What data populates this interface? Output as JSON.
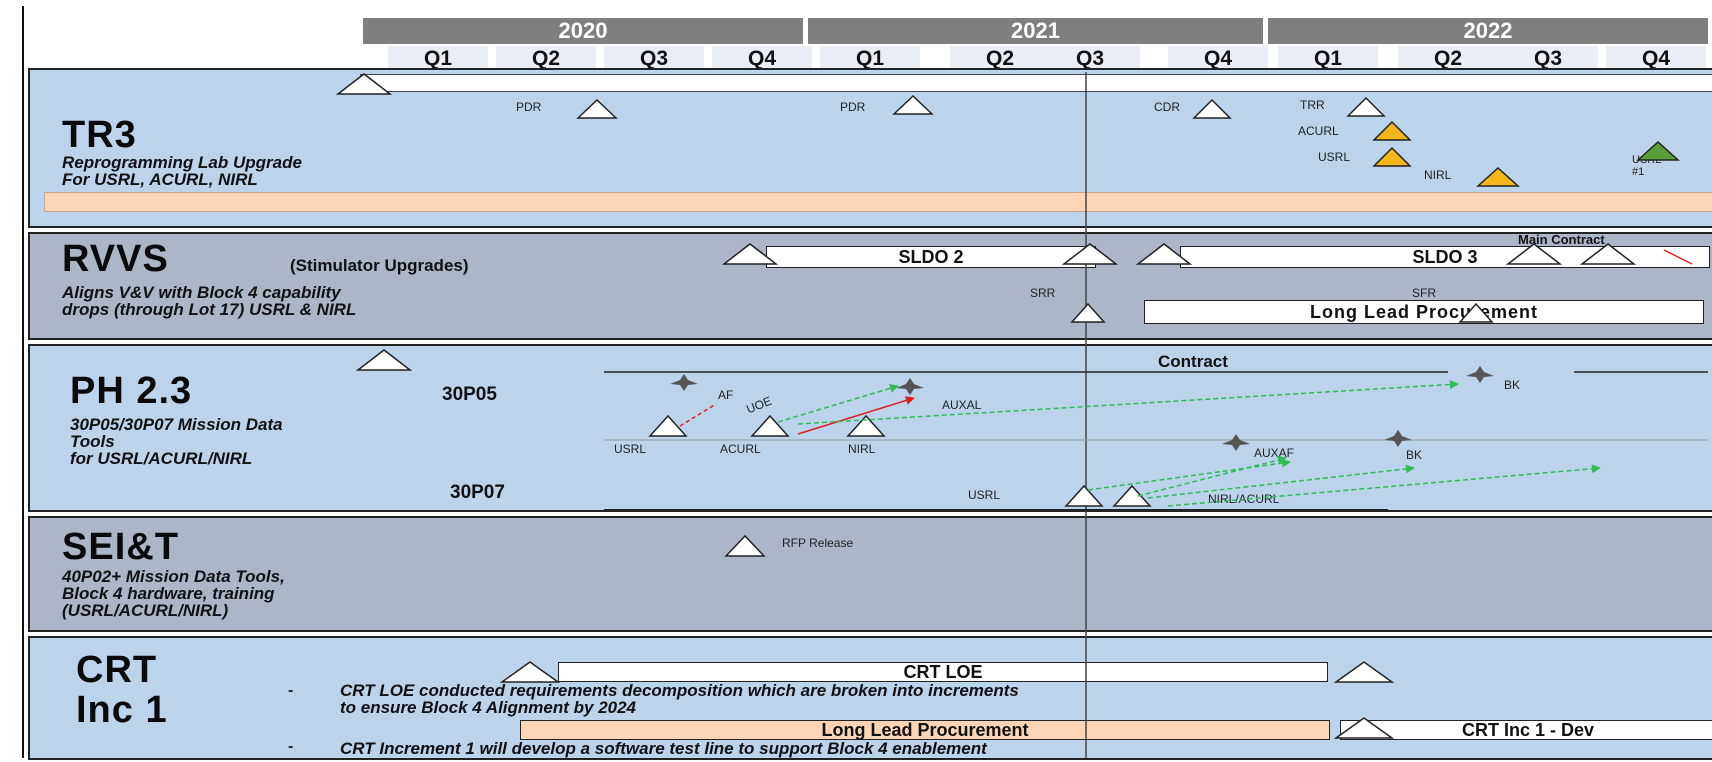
{
  "timeline": {
    "years": [
      "2020",
      "2021",
      "2022"
    ],
    "quarters": [
      "Q1",
      "Q2",
      "Q3",
      "Q4",
      "Q1",
      "Q2",
      "Q3",
      "Q4",
      "Q1",
      "Q2",
      "Q3",
      "Q4"
    ]
  },
  "lanes": {
    "tr3": {
      "title": "TR3",
      "subtitle": "Reprogramming Lab Upgrade\nFor USRL, ACURL, NIRL",
      "milestones": {
        "pdr1": "PDR",
        "pdr2": "PDR",
        "cdr": "CDR",
        "trr": "TRR",
        "acurl": "ACURL",
        "usrl": "USRL",
        "nirl": "NIRL",
        "usrl1": "USRL #1"
      }
    },
    "rvvs": {
      "title": "RVVS",
      "title_note": "(Stimulator Upgrades)",
      "subtitle": "Aligns V&V with Block 4  capability\ndrops (through Lot 17)  USRL & NIRL",
      "sldo2": "SLDO 2",
      "sldo3": "SLDO 3",
      "main_contract": "Main Contract",
      "srr": "SRR",
      "sfr": "SFR",
      "long_lead": "Long Lead Procurement"
    },
    "ph23": {
      "title": "PH 2.3",
      "subtitle": "30P05/30P07 Mission Data\nTools\nfor USRL/ACURL/NIRL",
      "row1": "30P05",
      "row2": "30P07",
      "contract": "Contract",
      "labels": {
        "usrl": "USRL",
        "acurl": "ACURL",
        "nirl": "NIRL",
        "af": "AF",
        "uoe": "UOE",
        "auxal": "AUXAL",
        "bk1": "BK",
        "usrl2": "USRL",
        "auxaf": "AUXAF",
        "bk2": "BK",
        "nirl_acurl": "NIRL/ACURL"
      }
    },
    "seit": {
      "title": "SEI&T",
      "subtitle": "40P02+ Mission Data Tools,\nBlock 4 hardware, training\n(USRL/ACURL/NIRL)",
      "rfp": "RFP Release"
    },
    "crt": {
      "title": "CRT\nInc 1",
      "crt_loe": "CRT LOE",
      "bullet1": "CRT LOE conducted requirements decomposition which are broken into increments\nto ensure Block 4 Alignment by 2024",
      "long_lead": "Long Lead Procurement",
      "crt_dev": "CRT Inc 1 -  Dev",
      "bullet2": "CRT Increment 1 will develop a software test line to support Block 4 enablement",
      "bullet_mark": "-"
    }
  },
  "colors": {
    "lane_blue": "#bcd3ec",
    "lane_gray": "#adb6c7",
    "salmon": "#fbd5b5",
    "gold": "#f3b71b",
    "green": "#5a9e3a",
    "arrow_green": "#2ebd52",
    "arrow_red": "#e02020"
  }
}
